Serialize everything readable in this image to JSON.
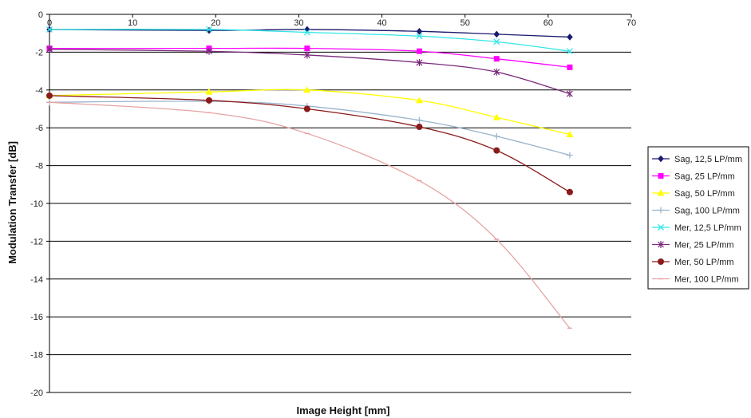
{
  "chart_data": {
    "type": "line",
    "title": "",
    "xlabel": "Image Height [mm]",
    "ylabel": "Modulation Transfer [dB]",
    "xlim": [
      0,
      70
    ],
    "ylim": [
      -20,
      0
    ],
    "xticks": [
      0,
      10,
      20,
      30,
      40,
      50,
      60,
      70
    ],
    "yticks": [
      0,
      -2,
      -4,
      -6,
      -8,
      -10,
      -12,
      -14,
      -16,
      -18,
      -20
    ],
    "grid": "horizontal",
    "legend_position": "right",
    "x": [
      0,
      19.2,
      31,
      44.5,
      53.8,
      62.6
    ],
    "series": [
      {
        "name": "Sag, 12,5 LP/mm",
        "color": "#1a1a6e",
        "marker": "diamond",
        "values": [
          -0.8,
          -0.85,
          -0.8,
          -0.9,
          -1.05,
          -1.2
        ]
      },
      {
        "name": "Sag, 25 LP/mm",
        "color": "#ff00ff",
        "marker": "square",
        "values": [
          -1.8,
          -1.8,
          -1.8,
          -1.95,
          -2.35,
          -2.8
        ]
      },
      {
        "name": "Sag, 50 LP/mm",
        "color": "#ffff00",
        "marker": "triangle",
        "values": [
          -4.3,
          -4.1,
          -4.0,
          -4.55,
          -5.45,
          -6.35
        ]
      },
      {
        "name": "Sag, 100 LP/mm",
        "color": "#99b3cc",
        "marker": "plus",
        "values": [
          -4.65,
          -4.6,
          -4.85,
          -5.6,
          -6.45,
          -7.45
        ]
      },
      {
        "name": "Mer, 12,5 LP/mm",
        "color": "#33e6e6",
        "marker": "x",
        "values": [
          -0.8,
          -0.8,
          -0.95,
          -1.15,
          -1.45,
          -1.95
        ]
      },
      {
        "name": "Mer, 25 LP/mm",
        "color": "#7a2a7a",
        "marker": "star",
        "values": [
          -1.85,
          -1.95,
          -2.15,
          -2.55,
          -3.05,
          -4.2
        ]
      },
      {
        "name": "Mer, 50 LP/mm",
        "color": "#8b1a1a",
        "marker": "circle",
        "values": [
          -4.3,
          -4.55,
          -5.0,
          -5.95,
          -7.2,
          -9.4
        ]
      },
      {
        "name": "Mer, 100 LP/mm",
        "color": "#e6a3a3",
        "marker": "dash",
        "values": [
          -4.65,
          -5.2,
          -6.3,
          -8.8,
          -11.9,
          -16.6
        ]
      }
    ]
  }
}
